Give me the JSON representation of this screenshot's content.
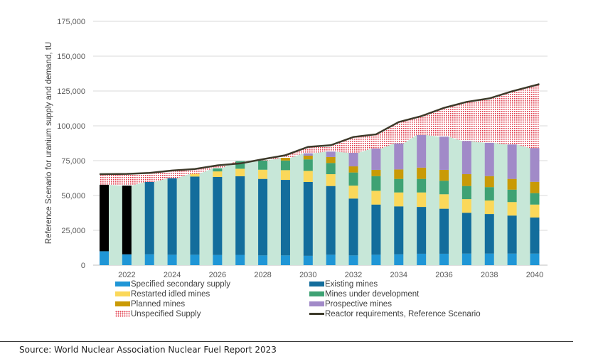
{
  "chart_data": {
    "type": "bar",
    "stacked": true,
    "ylabel": "Reference Scenario for uranium supply and demand, tU",
    "ylim": [
      0,
      175000
    ],
    "yticks": [
      "0",
      "25,000",
      "50,000",
      "75,000",
      "100,000",
      "125,000",
      "150,000",
      "175,000"
    ],
    "ytick_values": [
      0,
      25000,
      50000,
      75000,
      100000,
      125000,
      150000,
      175000
    ],
    "categories": [
      2021,
      2022,
      2023,
      2024,
      2025,
      2026,
      2027,
      2028,
      2029,
      2030,
      2031,
      2032,
      2033,
      2034,
      2035,
      2036,
      2037,
      2038,
      2039,
      2040
    ],
    "xtick_labels": [
      "2022",
      "2024",
      "2026",
      "2028",
      "2030",
      "2032",
      "2034",
      "2036",
      "2038",
      "2040"
    ],
    "grid": true,
    "legend_position": "bottom",
    "series": [
      {
        "name": "Specified secondary supply",
        "color": "#1f96d6",
        "values": [
          10000,
          7800,
          7800,
          7500,
          7500,
          7300,
          7400,
          7000,
          7000,
          6700,
          7500,
          7000,
          7500,
          7800,
          8200,
          8200,
          8300,
          8300,
          8300,
          8300
        ]
      },
      {
        "color": "#000000",
        "values": [
          47700,
          49300,
          0,
          0,
          0,
          0,
          0,
          0,
          0,
          0,
          0,
          0,
          0,
          0,
          0,
          0,
          0,
          0,
          0,
          0
        ]
      },
      {
        "name": "Existing mines",
        "color": "#136d9c",
        "values": [
          0,
          0,
          51900,
          54900,
          56100,
          56000,
          56400,
          54900,
          54200,
          53000,
          49300,
          40800,
          36000,
          34400,
          33600,
          32300,
          29300,
          28400,
          27300,
          25900
        ]
      },
      {
        "name": "Restarted idled mines",
        "color": "#fbd85a",
        "values": [
          0,
          0,
          0,
          0,
          2000,
          4000,
          5400,
          6600,
          7000,
          8000,
          8500,
          9300,
          9900,
          10000,
          10400,
          10400,
          9800,
          9700,
          9700,
          9300
        ]
      },
      {
        "name": "Mines under development",
        "color": "#3ea274",
        "values": [
          0,
          0,
          0,
          0,
          0,
          2200,
          5400,
          6600,
          6900,
          8200,
          8000,
          9400,
          10500,
          9700,
          9700,
          9700,
          9400,
          9600,
          8900,
          8200
        ]
      },
      {
        "name": "Planned mines",
        "color": "#c99a06",
        "values": [
          0,
          0,
          0,
          0,
          0,
          0,
          0,
          0,
          1900,
          2700,
          4300,
          4400,
          4500,
          6800,
          8100,
          7800,
          8500,
          7900,
          7700,
          8100
        ]
      },
      {
        "name": "Prospective mines",
        "color": "#a18ac8",
        "values": [
          0,
          0,
          0,
          0,
          0,
          0,
          0,
          0,
          0,
          1700,
          3900,
          9700,
          15300,
          18700,
          23400,
          23800,
          23800,
          23900,
          24700,
          24200
        ]
      }
    ],
    "unspecified_supply": {
      "name": "Unspecified Supply",
      "color": "#e03a4a"
    },
    "supply_area_color": "#c7e7d8",
    "line": {
      "name": "Reactor requirements, Reference Scenario",
      "color": "#3d3a2a",
      "values": [
        65300,
        65500,
        66200,
        67900,
        69000,
        71600,
        73000,
        76000,
        78900,
        84900,
        86100,
        92000,
        93900,
        102700,
        107000,
        112900,
        117200,
        119700,
        124800,
        129900
      ]
    }
  },
  "source": "Source: World Nuclear Association Nuclear Fuel Report 2023"
}
